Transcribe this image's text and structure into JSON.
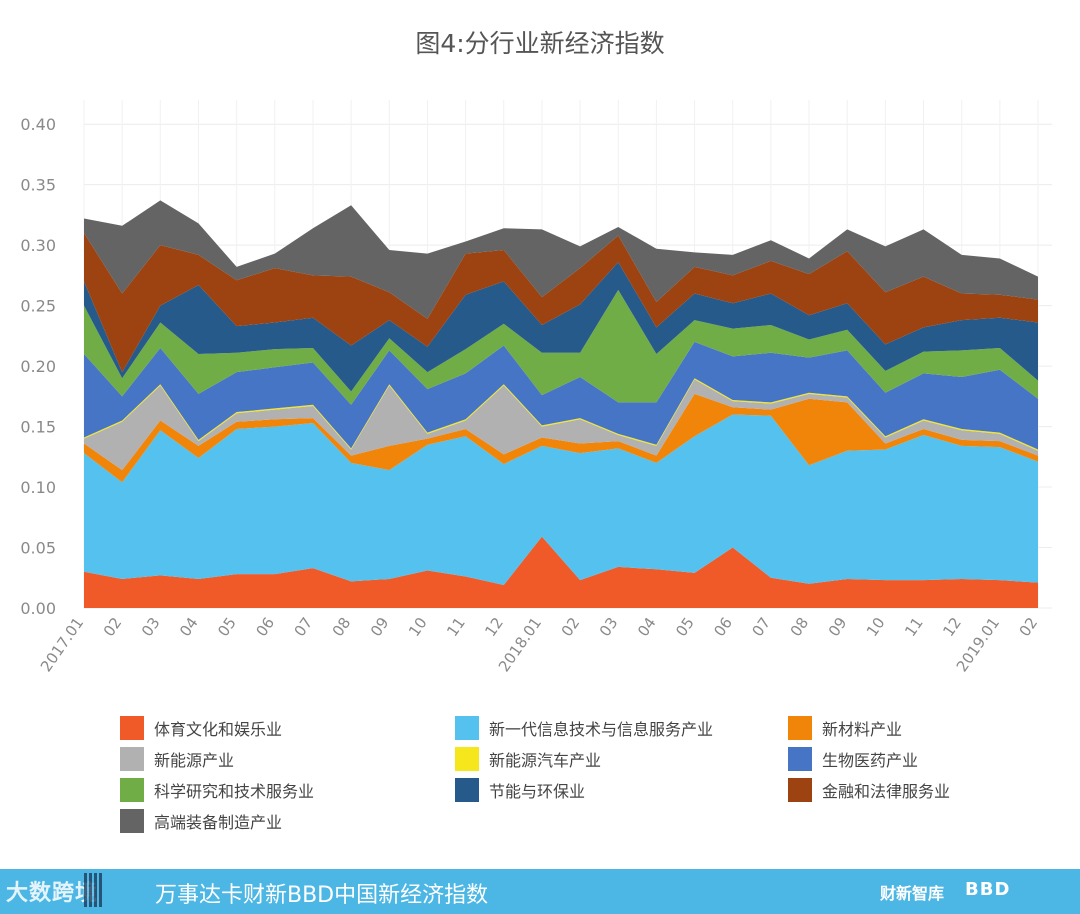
{
  "chart_data": {
    "type": "area",
    "stacked": true,
    "title": "图4:分行业新经济指数",
    "xlabel": "",
    "ylabel": "",
    "ylim": [
      0,
      0.42
    ],
    "yticks": [
      "0.00",
      "0.05",
      "0.10",
      "0.15",
      "0.20",
      "0.25",
      "0.30",
      "0.35",
      "0.40"
    ],
    "x": [
      "2017.01",
      "02",
      "03",
      "04",
      "05",
      "06",
      "07",
      "08",
      "09",
      "10",
      "11",
      "12",
      "2018.01",
      "02",
      "03",
      "04",
      "05",
      "06",
      "07",
      "08",
      "09",
      "10",
      "11",
      "12",
      "2019.01",
      "02"
    ],
    "grid": true,
    "legend_position": "bottom",
    "series": [
      {
        "name": "体育文化和娱乐业",
        "color": "#ef5a28",
        "values": [
          0.03,
          0.024,
          0.027,
          0.024,
          0.028,
          0.028,
          0.033,
          0.022,
          0.024,
          0.031,
          0.026,
          0.019,
          0.059,
          0.023,
          0.034,
          0.032,
          0.029,
          0.05,
          0.025,
          0.02,
          0.024,
          0.023,
          0.023,
          0.024,
          0.023,
          0.021
        ]
      },
      {
        "name": "新一代信息技术与信息服务产业",
        "color": "#55c1ee",
        "values": [
          0.098,
          0.08,
          0.12,
          0.1,
          0.12,
          0.122,
          0.12,
          0.098,
          0.09,
          0.104,
          0.116,
          0.1,
          0.075,
          0.105,
          0.098,
          0.088,
          0.113,
          0.11,
          0.134,
          0.098,
          0.106,
          0.108,
          0.12,
          0.11,
          0.11,
          0.1
        ]
      },
      {
        "name": "新材料产业",
        "color": "#f0850a",
        "values": [
          0.008,
          0.01,
          0.008,
          0.01,
          0.006,
          0.006,
          0.004,
          0.006,
          0.02,
          0.005,
          0.006,
          0.008,
          0.007,
          0.008,
          0.006,
          0.006,
          0.035,
          0.006,
          0.005,
          0.055,
          0.04,
          0.005,
          0.005,
          0.005,
          0.005,
          0.005
        ]
      },
      {
        "name": "新能源产业",
        "color": "#b1b1b1",
        "values": [
          0.004,
          0.04,
          0.029,
          0.004,
          0.007,
          0.008,
          0.01,
          0.005,
          0.05,
          0.004,
          0.007,
          0.057,
          0.009,
          0.02,
          0.005,
          0.008,
          0.012,
          0.005,
          0.005,
          0.004,
          0.004,
          0.005,
          0.007,
          0.008,
          0.006,
          0.004
        ]
      },
      {
        "name": "新能源汽车产业",
        "color": "#f6e71c",
        "values": [
          0.001,
          0.001,
          0.001,
          0.001,
          0.001,
          0.001,
          0.001,
          0.001,
          0.001,
          0.001,
          0.001,
          0.001,
          0.001,
          0.001,
          0.001,
          0.001,
          0.001,
          0.001,
          0.001,
          0.001,
          0.001,
          0.001,
          0.001,
          0.001,
          0.001,
          0.001
        ]
      },
      {
        "name": "生物医药产业",
        "color": "#4675c6",
        "values": [
          0.069,
          0.02,
          0.03,
          0.038,
          0.033,
          0.034,
          0.035,
          0.036,
          0.028,
          0.036,
          0.038,
          0.032,
          0.025,
          0.034,
          0.026,
          0.035,
          0.03,
          0.036,
          0.041,
          0.029,
          0.038,
          0.036,
          0.038,
          0.043,
          0.052,
          0.042
        ]
      },
      {
        "name": "科学研究和技术服务业",
        "color": "#70ad47",
        "values": [
          0.04,
          0.015,
          0.021,
          0.033,
          0.016,
          0.015,
          0.012,
          0.011,
          0.01,
          0.014,
          0.02,
          0.018,
          0.035,
          0.02,
          0.093,
          0.04,
          0.018,
          0.023,
          0.023,
          0.015,
          0.017,
          0.018,
          0.018,
          0.022,
          0.018,
          0.015
        ]
      },
      {
        "name": "节能与环保业",
        "color": "#265a8a",
        "values": [
          0.02,
          0.005,
          0.014,
          0.057,
          0.022,
          0.022,
          0.025,
          0.038,
          0.015,
          0.021,
          0.045,
          0.035,
          0.023,
          0.04,
          0.023,
          0.022,
          0.022,
          0.021,
          0.026,
          0.02,
          0.022,
          0.022,
          0.02,
          0.025,
          0.025,
          0.048
        ]
      },
      {
        "name": "金融和法律服务业",
        "color": "#9c4311",
        "values": [
          0.04,
          0.065,
          0.05,
          0.025,
          0.038,
          0.045,
          0.035,
          0.057,
          0.023,
          0.023,
          0.034,
          0.026,
          0.023,
          0.03,
          0.022,
          0.021,
          0.022,
          0.023,
          0.027,
          0.034,
          0.043,
          0.043,
          0.042,
          0.022,
          0.019,
          0.019
        ]
      },
      {
        "name": "高端装备制造产业",
        "color": "#646464",
        "values": [
          0.012,
          0.056,
          0.037,
          0.026,
          0.011,
          0.012,
          0.039,
          0.059,
          0.035,
          0.054,
          0.01,
          0.018,
          0.056,
          0.018,
          0.007,
          0.044,
          0.012,
          0.017,
          0.017,
          0.013,
          0.018,
          0.038,
          0.039,
          0.032,
          0.03,
          0.019
        ]
      }
    ]
  },
  "footer": {
    "logo": "大数跨境",
    "main": "万事达卡财新BBD中国新经济指数",
    "brand1": "财新智库",
    "brand2": "BBD"
  }
}
